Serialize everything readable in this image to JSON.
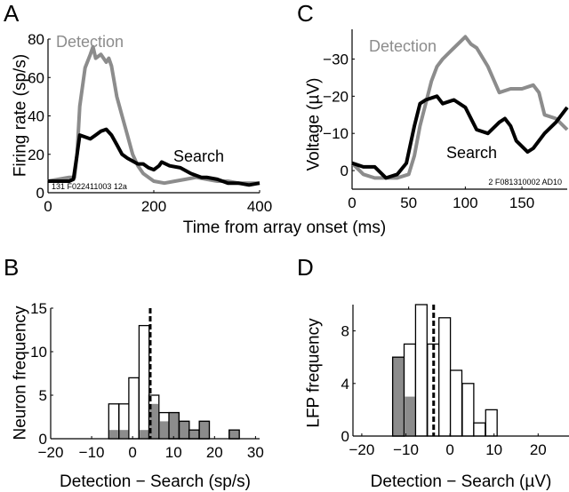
{
  "colors": {
    "detection": "#8c8c8c",
    "search": "#000000",
    "bar_fill_gray": "#8c8c8c"
  },
  "shared_xlabel": "Time from array onset (ms)",
  "chart_data": [
    {
      "panel": "A",
      "type": "line",
      "ylabel": "Firing rate (sp/s)",
      "xlabel": "Time from array onset (ms)",
      "xlim": [
        0,
        400
      ],
      "ylim": [
        0,
        80
      ],
      "xticks": [
        0,
        200,
        400
      ],
      "yticks": [
        0,
        20,
        40,
        60,
        80
      ],
      "annotation": "131 F022411003 12a",
      "series": [
        {
          "name": "Detection",
          "x": [
            0,
            20,
            40,
            50,
            55,
            60,
            70,
            80,
            85,
            90,
            100,
            110,
            115,
            120,
            130,
            140,
            150,
            160,
            170,
            180,
            190,
            200,
            220,
            240,
            260,
            280,
            300,
            320,
            340,
            360,
            380,
            400
          ],
          "y": [
            6,
            7,
            8,
            8,
            20,
            45,
            65,
            72,
            76,
            70,
            72,
            68,
            70,
            66,
            50,
            40,
            30,
            20,
            14,
            10,
            8,
            6,
            5,
            6,
            7,
            8,
            7,
            6,
            6,
            5,
            5,
            5
          ]
        },
        {
          "name": "Search",
          "x": [
            0,
            40,
            48,
            55,
            60,
            70,
            80,
            90,
            100,
            110,
            120,
            130,
            140,
            150,
            170,
            180,
            190,
            200,
            210,
            215,
            230,
            250,
            270,
            290,
            300,
            320,
            340,
            360,
            380,
            400
          ],
          "y": [
            6,
            6,
            7,
            20,
            30,
            29,
            28,
            30,
            32,
            33,
            30,
            25,
            20,
            18,
            15,
            15,
            13,
            12,
            14,
            16,
            14,
            13,
            10,
            8,
            8,
            7,
            5,
            5,
            4,
            5
          ]
        }
      ]
    },
    {
      "panel": "C",
      "type": "line",
      "ylabel": "Voltage (µV)",
      "xlabel": "Time from array onset (ms)",
      "xlim": [
        0,
        190
      ],
      "ylim": [
        5,
        -38
      ],
      "y_inverted": true,
      "xticks": [
        0,
        50,
        100,
        150
      ],
      "yticks": [
        0,
        -10,
        -20,
        -30
      ],
      "annotation": "2 F081310002 AD10",
      "series": [
        {
          "name": "Detection",
          "x": [
            0,
            10,
            20,
            30,
            40,
            50,
            55,
            60,
            65,
            70,
            75,
            80,
            90,
            100,
            105,
            110,
            120,
            130,
            140,
            150,
            160,
            165,
            170,
            180,
            190
          ],
          "y": [
            -2,
            1,
            2,
            2,
            2,
            1,
            -4,
            -12,
            -18,
            -24,
            -28,
            -30,
            -33,
            -36,
            -34,
            -33,
            -28,
            -21,
            -22,
            -22,
            -23,
            -21,
            -15,
            -14,
            -11
          ]
        },
        {
          "name": "Search",
          "x": [
            0,
            10,
            20,
            30,
            40,
            48,
            55,
            60,
            65,
            75,
            80,
            90,
            100,
            110,
            120,
            130,
            135,
            140,
            145,
            155,
            160,
            170,
            180,
            190
          ],
          "y": [
            -2,
            -1,
            -1,
            2,
            1,
            -2,
            -12,
            -18,
            -19,
            -20,
            -18,
            -19,
            -17,
            -11,
            -10,
            -13,
            -14,
            -12,
            -8,
            -5,
            -6,
            -10,
            -13,
            -17
          ]
        }
      ]
    },
    {
      "panel": "B",
      "type": "bar",
      "ylabel": "Neuron frequency",
      "xlabel": "Detection − Search (sp/s)",
      "xlim": [
        -20,
        31
      ],
      "ylim": [
        0,
        15
      ],
      "xticks": [
        -20,
        -10,
        0,
        10,
        20,
        30
      ],
      "yticks": [
        0,
        5,
        10,
        15
      ],
      "bin_width": 2.45,
      "bin_centers": [
        -4.6,
        -2.1,
        0.3,
        2.8,
        5.2,
        7.7,
        10.1,
        12.6,
        15.0,
        17.5,
        19.9,
        22.4,
        24.8
      ],
      "total_counts": [
        4,
        4,
        7,
        13,
        5,
        3,
        3,
        2,
        1,
        2,
        0,
        0,
        1
      ],
      "significant_counts": [
        1,
        1,
        0,
        1,
        4,
        2,
        3,
        2,
        1,
        2,
        0,
        0,
        1
      ],
      "mean_line": 4.3
    },
    {
      "panel": "D",
      "type": "bar",
      "ylabel": "LFP frequency",
      "xlabel": "Detection − Search (µV)",
      "xlim": [
        -22,
        27
      ],
      "ylim": [
        0,
        10
      ],
      "xticks": [
        -20,
        -10,
        0,
        10,
        20
      ],
      "yticks": [
        0,
        4,
        8
      ],
      "bin_width": 2.6,
      "bin_centers": [
        -11.7,
        -9.1,
        -6.5,
        -3.8,
        -1.2,
        1.4,
        4.1,
        6.7,
        9.4
      ],
      "total_counts": [
        6,
        7,
        10,
        7,
        9,
        5,
        4,
        1,
        2
      ],
      "significant_counts": [
        6,
        3,
        0,
        0,
        0,
        0,
        0,
        0,
        0
      ],
      "mean_line": -3.7
    }
  ]
}
